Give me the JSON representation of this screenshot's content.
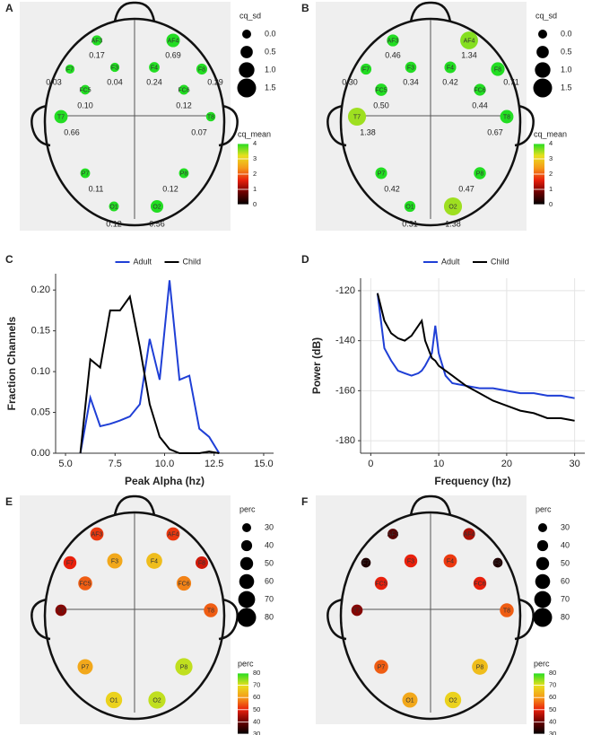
{
  "chart_data": [
    {
      "type": "topomap",
      "panel": "A",
      "categories": [
        "AF3",
        "AF4",
        "F7",
        "F3",
        "F4",
        "F8",
        "FC5",
        "FC6",
        "T7",
        "T8",
        "P7",
        "P8",
        "O1",
        "O2"
      ],
      "values": [
        0.17,
        0.69,
        0.03,
        0.04,
        0.24,
        0.29,
        0.1,
        0.12,
        0.66,
        0.07,
        0.11,
        0.12,
        0.12,
        0.56
      ],
      "value_labels": [
        "0.17",
        "0.69",
        "0.03",
        "0.04",
        "0.24",
        "0.29",
        "0.10",
        "0.12",
        "0.66",
        "0.07",
        "0.11",
        "0.12",
        "0.12",
        "0.56"
      ],
      "mean_values": [
        4,
        4,
        4,
        4,
        4,
        4,
        4,
        4,
        4,
        4,
        4,
        4,
        4,
        4
      ],
      "size_legend": {
        "title": "cq_sd",
        "ticks": [
          {
            "value": 0,
            "label": "0.0"
          },
          0.5,
          {
            "value": 1,
            "label": "1.0"
          },
          1.5
        ]
      },
      "colorbar": {
        "title": "cq_mean",
        "lim": [
          0,
          4
        ],
        "ticks": [
          0,
          1,
          2,
          3,
          4
        ]
      }
    },
    {
      "type": "topomap",
      "panel": "B",
      "categories": [
        "AF3",
        "AF4",
        "F7",
        "F3",
        "F4",
        "F8",
        "FC5",
        "FC6",
        "T7",
        "T8",
        "P7",
        "P8",
        "O1",
        "O2"
      ],
      "values": [
        0.46,
        1.34,
        0.3,
        0.34,
        0.42,
        0.71,
        0.5,
        0.44,
        1.38,
        0.67,
        0.42,
        0.47,
        0.31,
        1.38
      ],
      "value_labels": [
        "0.46",
        "1.34",
        "0.30",
        "0.34",
        "0.42",
        "0.71",
        "0.50",
        "0.44",
        "1.38",
        "0.67",
        "0.42",
        "0.47",
        "0.31",
        "1.38"
      ],
      "mean_values": [
        4,
        3.6,
        4,
        4,
        4,
        4,
        4,
        4,
        3.5,
        4,
        4,
        4,
        4,
        3.5
      ],
      "size_legend": {
        "title": "cq_sd",
        "ticks": [
          {
            "value": 0,
            "label": "0.0"
          },
          0.5,
          {
            "value": 1,
            "label": "1.0"
          },
          1.5
        ]
      },
      "colorbar": {
        "title": "cq_mean",
        "lim": [
          0,
          4
        ],
        "ticks": [
          0,
          1,
          2,
          3,
          4
        ]
      }
    },
    {
      "type": "line",
      "panel": "C",
      "x_label": "Peak Alpha (hz)",
      "y_label": "Fraction Channels",
      "x": [
        5.75,
        6.25,
        6.75,
        7.25,
        7.75,
        8.25,
        8.75,
        9.25,
        9.75,
        10.25,
        10.75,
        11.25,
        11.75,
        12.25,
        12.75
      ],
      "series": [
        {
          "name": "Adult",
          "color": "#1f3fd6",
          "values": [
            0,
            0.068,
            0.033,
            0.036,
            0.04,
            0.045,
            0.06,
            0.14,
            0.09,
            0.212,
            0.09,
            0.095,
            0.03,
            0.02,
            0
          ]
        },
        {
          "name": "Child",
          "color": "#000000",
          "values": [
            0,
            0.115,
            0.105,
            0.175,
            0.175,
            0.192,
            0.13,
            0.06,
            0.02,
            0.005,
            0,
            0,
            0,
            0.002,
            0
          ]
        }
      ],
      "xlim": [
        4.5,
        15.5
      ],
      "xticks": [
        {
          "value": 5,
          "label": "5.0"
        },
        7.5,
        {
          "value": 10,
          "label": "10.0"
        },
        12.5,
        {
          "value": 15,
          "label": "15.0"
        }
      ],
      "ylim": [
        0,
        0.22
      ],
      "yticks": [
        {
          "value": 0,
          "label": "0.00"
        },
        0.05,
        {
          "value": 0.1,
          "label": "0.10"
        },
        0.15,
        {
          "value": 0.2,
          "label": "0.20"
        }
      ],
      "grid": false
    },
    {
      "type": "line",
      "panel": "D",
      "x_label": "Frequency (hz)",
      "y_label": "Power (dB)",
      "x": [
        1,
        2,
        3,
        4,
        5,
        6,
        7,
        7.5,
        8,
        9,
        9.5,
        10,
        11,
        12,
        14,
        16,
        18,
        20,
        22,
        24,
        26,
        28,
        30
      ],
      "series": [
        {
          "name": "Adult",
          "color": "#1f3fd6",
          "values": [
            -121,
            -143,
            -148,
            -152,
            -153,
            -154,
            -153,
            -152,
            -150,
            -145,
            -134,
            -145,
            -154,
            -157,
            -158,
            -159,
            -159,
            -160,
            -161,
            -161,
            -162,
            -162,
            -163
          ]
        },
        {
          "name": "Child",
          "color": "#000000",
          "values": [
            -121,
            -132,
            -137,
            -139,
            -140,
            -138,
            -134,
            -132,
            -140,
            -147,
            -148,
            -150,
            -152,
            -154,
            -158,
            -161,
            -164,
            -166,
            -168,
            -169,
            -171,
            -171,
            -172
          ]
        }
      ],
      "xlim": [
        -1.5,
        31.5
      ],
      "xticks": [
        0,
        10,
        20,
        30
      ],
      "ylim": [
        -185,
        -115
      ],
      "yticks": [
        -180,
        -160,
        -140,
        -120
      ],
      "grid": true
    },
    {
      "type": "topomap",
      "panel": "E",
      "categories": [
        "AF3",
        "AF4",
        "F7",
        "F3",
        "F4",
        "F8",
        "FC5",
        "FC6",
        "T7",
        "T8",
        "P7",
        "P8",
        "O1",
        "O2"
      ],
      "values": [
        52,
        52,
        50,
        62,
        65,
        48,
        55,
        58,
        42,
        55,
        62,
        72,
        68,
        72
      ],
      "size_legend": {
        "title": "perc",
        "ticks": [
          30,
          40,
          50,
          60,
          70,
          80
        ]
      },
      "colorbar": {
        "title": "perc",
        "lim": [
          30,
          80
        ],
        "ticks": [
          30,
          40,
          50,
          60,
          70,
          80
        ]
      }
    },
    {
      "type": "topomap",
      "panel": "F",
      "categories": [
        "AF3",
        "AF4",
        "F7",
        "F3",
        "F4",
        "F8",
        "FC5",
        "FC6",
        "T7",
        "T8",
        "P7",
        "P8",
        "O1",
        "O2"
      ],
      "values": [
        38,
        45,
        33,
        50,
        52,
        33,
        50,
        50,
        42,
        55,
        55,
        65,
        62,
        68
      ],
      "size_legend": {
        "title": "perc",
        "ticks": [
          30,
          40,
          50,
          60,
          70,
          80
        ]
      },
      "colorbar": {
        "title": "perc",
        "lim": [
          30,
          80
        ],
        "ticks": [
          30,
          40,
          50,
          60,
          70,
          80
        ]
      }
    }
  ]
}
